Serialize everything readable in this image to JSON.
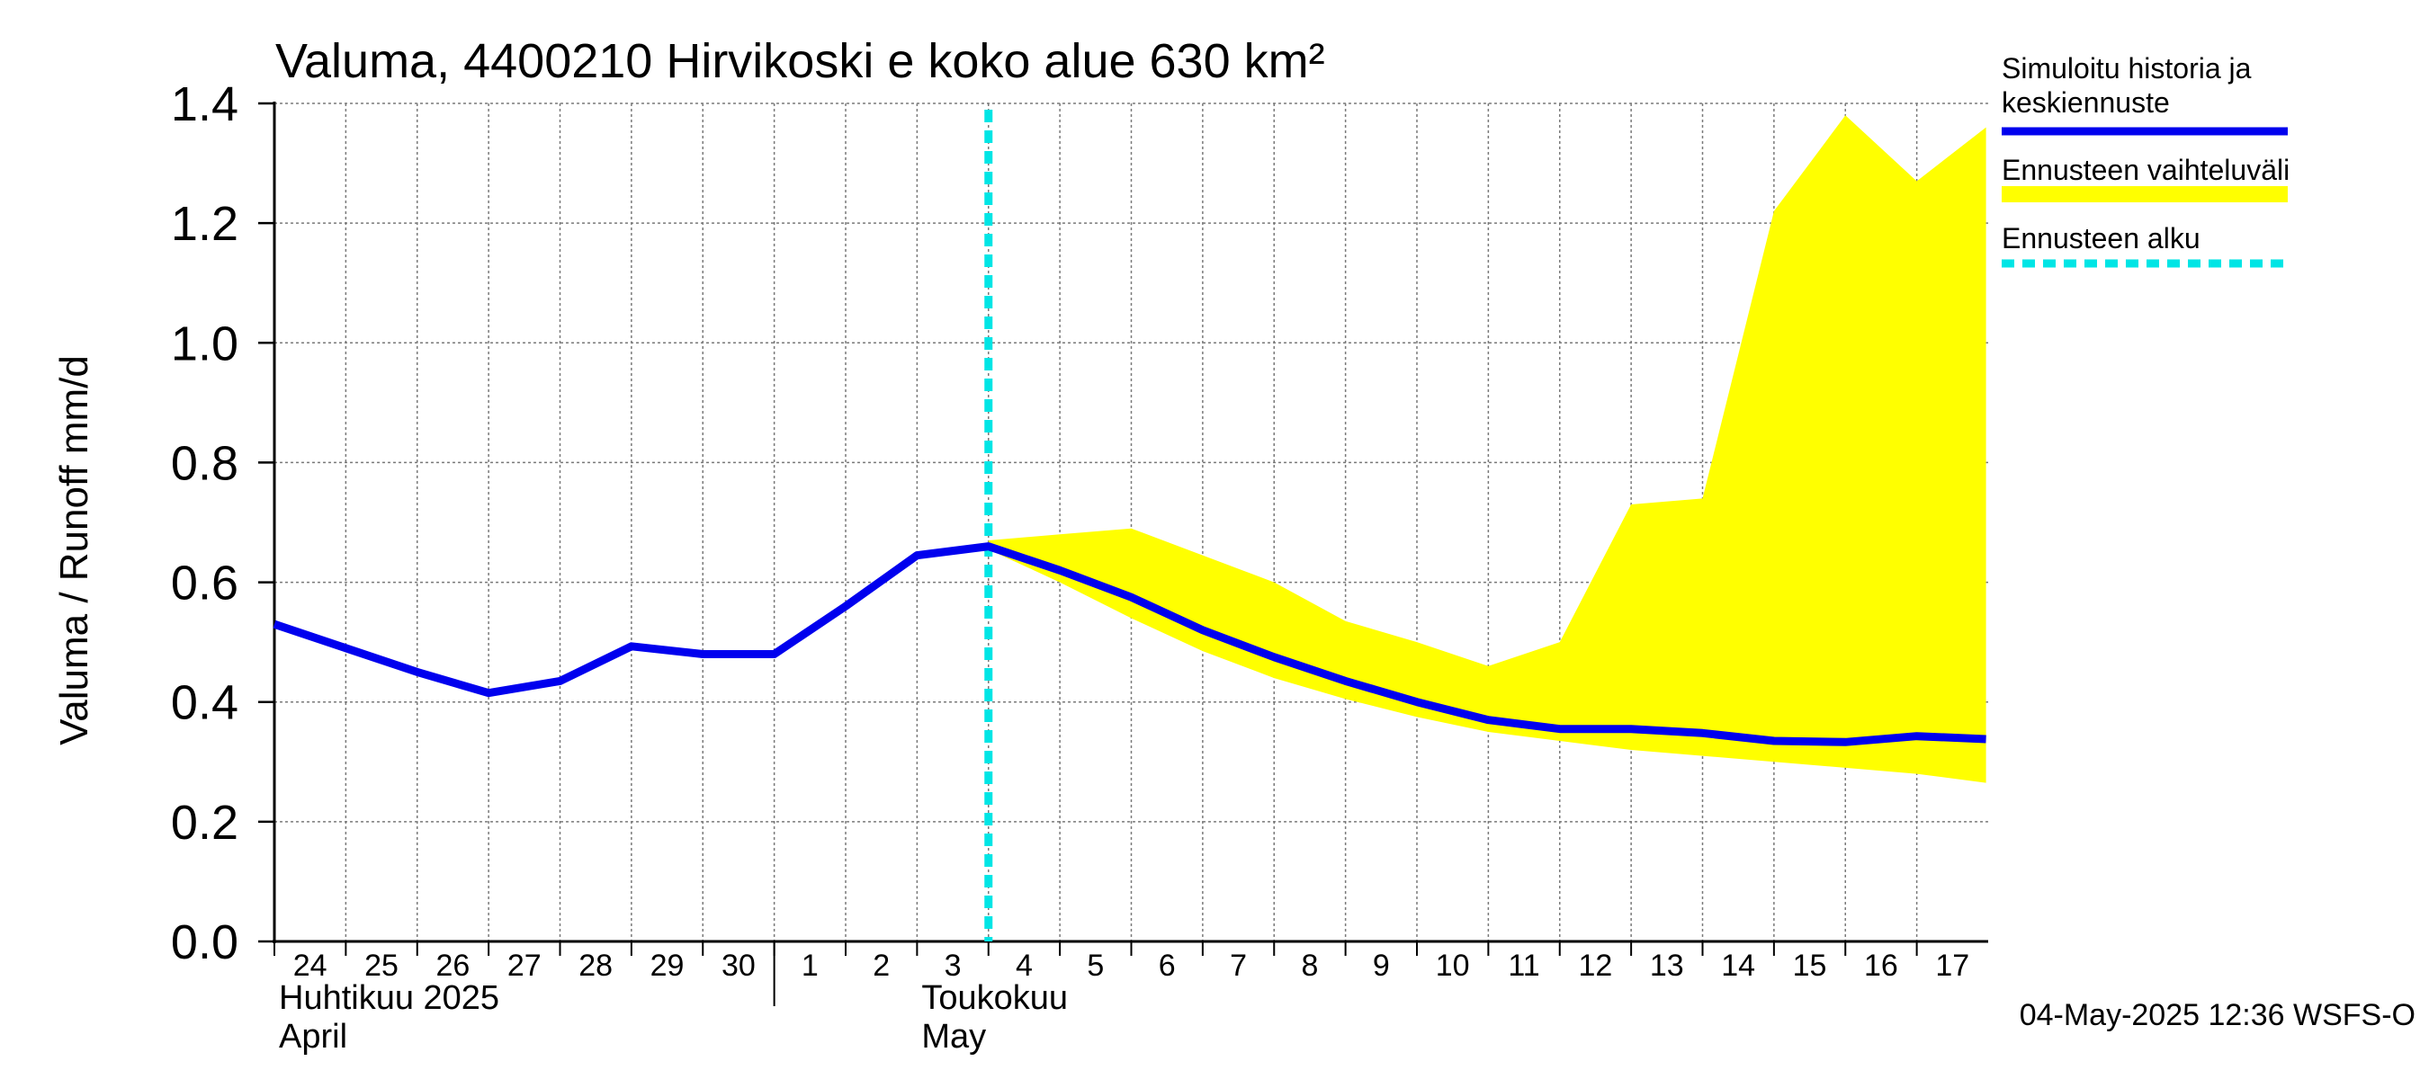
{
  "chart_data": {
    "type": "line",
    "title": "Valuma, 4400210 Hirvikoski e koko alue 630 km²",
    "ylabel": "Valuma / Runoff    mm/d",
    "ylim": [
      0.0,
      1.4
    ],
    "yticks": [
      "0.0",
      "0.2",
      "0.4",
      "0.6",
      "0.8",
      "1.0",
      "1.2",
      "1.4"
    ],
    "x_tick_labels": [
      "24",
      "25",
      "26",
      "27",
      "28",
      "29",
      "30",
      "1",
      "2",
      "3",
      "4",
      "5",
      "6",
      "7",
      "8",
      "9",
      "10",
      "11",
      "12",
      "13",
      "14",
      "15",
      "16",
      "17"
    ],
    "month_labels": [
      {
        "fi": "Huhtikuu  2025",
        "en": "April"
      },
      {
        "fi": "Toukokuu",
        "en": "May"
      }
    ],
    "grid": true,
    "forecast_start_index": 10,
    "series": [
      {
        "name": "Simuloitu historia ja keskiennuste",
        "color": "#0000ee",
        "x": [
          0,
          1,
          2,
          3,
          4,
          5,
          6,
          7,
          8,
          9,
          10,
          11,
          12,
          13,
          14,
          15,
          16,
          17,
          18,
          19,
          20,
          21,
          22,
          23,
          23.97
        ],
        "values": [
          0.53,
          0.49,
          0.45,
          0.415,
          0.435,
          0.493,
          0.48,
          0.48,
          0.56,
          0.645,
          0.66,
          0.62,
          0.575,
          0.52,
          0.475,
          0.435,
          0.4,
          0.37,
          0.355,
          0.355,
          0.348,
          0.335,
          0.333,
          0.343,
          0.338
        ]
      },
      {
        "name": "Ennusteen vaihteluväli",
        "color": "#ffff00",
        "type": "band",
        "x": [
          10,
          11,
          12,
          13,
          14,
          15,
          16,
          17,
          18,
          19,
          20,
          21,
          22,
          23,
          23.97
        ],
        "upper": [
          0.67,
          0.68,
          0.69,
          0.645,
          0.6,
          0.535,
          0.5,
          0.46,
          0.5,
          0.73,
          0.74,
          1.22,
          1.38,
          1.27,
          1.36
        ],
        "lower": [
          0.655,
          0.6,
          0.54,
          0.485,
          0.44,
          0.405,
          0.375,
          0.35,
          0.335,
          0.32,
          0.31,
          0.3,
          0.29,
          0.28,
          0.265
        ]
      },
      {
        "name": "Ennusteen alku",
        "color": "#00e5e5",
        "type": "vline"
      }
    ],
    "legend": {
      "placement": "right",
      "items": [
        {
          "label_lines": [
            "Simuloitu historia ja",
            "keskiennuste"
          ],
          "color": "#0000ee",
          "style": "solid"
        },
        {
          "label_lines": [
            "Ennusteen vaihteluväli"
          ],
          "color": "#ffff00",
          "style": "band"
        },
        {
          "label_lines": [
            "Ennusteen alku"
          ],
          "color": "#00e5e5",
          "style": "dashed"
        }
      ]
    },
    "footer": "04-May-2025 12:36 WSFS-O"
  }
}
